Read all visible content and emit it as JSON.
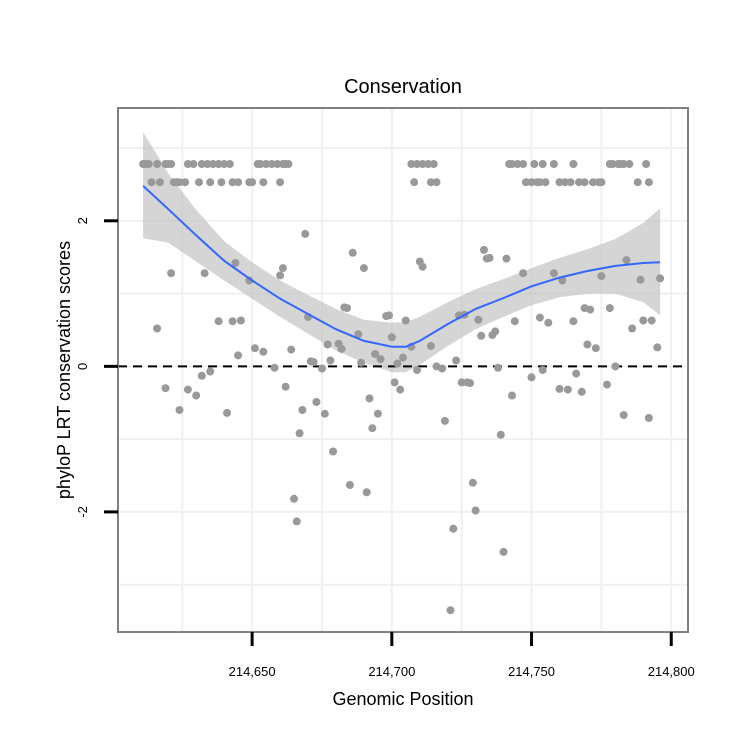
{
  "chart_data": {
    "type": "scatter",
    "title": "Conservation",
    "xlabel": "Genomic Position",
    "ylabel": "phyloP LRT conservation scores",
    "xlim": [
      214602,
      214806
    ],
    "ylim": [
      -3.65,
      3.55
    ],
    "x_ticks": [
      214650,
      214700,
      214750,
      214800
    ],
    "x_tick_labels": [
      "214,650",
      "214,700",
      "214,750",
      "214,800"
    ],
    "y_ticks": [
      -2,
      0,
      2
    ],
    "y_tick_labels": [
      "-2",
      "0",
      "2"
    ],
    "reference_line": {
      "y": 0,
      "style": "dashed"
    },
    "grid": true,
    "colors": {
      "points": "#999999",
      "smooth_line": "#3366ff",
      "confidence_band": "#bfbfbf",
      "grid": "#f0f0f0",
      "border": "#808080"
    },
    "points": [
      {
        "x": 214611,
        "y": 2.78
      },
      {
        "x": 214612,
        "y": 2.78
      },
      {
        "x": 214613,
        "y": 2.78
      },
      {
        "x": 214614,
        "y": 2.53
      },
      {
        "x": 214616,
        "y": 2.78
      },
      {
        "x": 214617,
        "y": 2.53
      },
      {
        "x": 214619,
        "y": 2.78
      },
      {
        "x": 214620,
        "y": 2.78
      },
      {
        "x": 214621,
        "y": 2.78
      },
      {
        "x": 214622,
        "y": 2.53
      },
      {
        "x": 214623,
        "y": 2.53
      },
      {
        "x": 214624,
        "y": 2.53
      },
      {
        "x": 214626,
        "y": 2.53
      },
      {
        "x": 214627,
        "y": 2.78
      },
      {
        "x": 214629,
        "y": 2.78
      },
      {
        "x": 214631,
        "y": 2.53
      },
      {
        "x": 214632,
        "y": 2.78
      },
      {
        "x": 214634,
        "y": 2.78
      },
      {
        "x": 214635,
        "y": 2.53
      },
      {
        "x": 214636,
        "y": 2.78
      },
      {
        "x": 214638,
        "y": 2.78
      },
      {
        "x": 214639,
        "y": 2.53
      },
      {
        "x": 214640,
        "y": 2.78
      },
      {
        "x": 214642,
        "y": 2.78
      },
      {
        "x": 214643,
        "y": 2.53
      },
      {
        "x": 214645,
        "y": 2.53
      },
      {
        "x": 214649,
        "y": 2.53
      },
      {
        "x": 214650,
        "y": 2.53
      },
      {
        "x": 214652,
        "y": 2.78
      },
      {
        "x": 214653,
        "y": 2.78
      },
      {
        "x": 214654,
        "y": 2.53
      },
      {
        "x": 214655,
        "y": 2.78
      },
      {
        "x": 214657,
        "y": 2.78
      },
      {
        "x": 214659,
        "y": 2.78
      },
      {
        "x": 214660,
        "y": 2.53
      },
      {
        "x": 214661,
        "y": 2.78
      },
      {
        "x": 214662,
        "y": 2.78
      },
      {
        "x": 214663,
        "y": 2.78
      },
      {
        "x": 214707,
        "y": 2.78
      },
      {
        "x": 214708,
        "y": 2.53
      },
      {
        "x": 214709,
        "y": 2.78
      },
      {
        "x": 214711,
        "y": 2.78
      },
      {
        "x": 214713,
        "y": 2.78
      },
      {
        "x": 214714,
        "y": 2.53
      },
      {
        "x": 214715,
        "y": 2.78
      },
      {
        "x": 214716,
        "y": 2.53
      },
      {
        "x": 214742,
        "y": 2.78
      },
      {
        "x": 214743,
        "y": 2.78
      },
      {
        "x": 214745,
        "y": 2.78
      },
      {
        "x": 214747,
        "y": 2.78
      },
      {
        "x": 214748,
        "y": 2.53
      },
      {
        "x": 214750,
        "y": 2.53
      },
      {
        "x": 214751,
        "y": 2.78
      },
      {
        "x": 214752,
        "y": 2.53
      },
      {
        "x": 214753,
        "y": 2.53
      },
      {
        "x": 214754,
        "y": 2.78
      },
      {
        "x": 214755,
        "y": 2.53
      },
      {
        "x": 214758,
        "y": 2.78
      },
      {
        "x": 214760,
        "y": 2.53
      },
      {
        "x": 214762,
        "y": 2.53
      },
      {
        "x": 214764,
        "y": 2.53
      },
      {
        "x": 214765,
        "y": 2.78
      },
      {
        "x": 214767,
        "y": 2.53
      },
      {
        "x": 214769,
        "y": 2.53
      },
      {
        "x": 214772,
        "y": 2.53
      },
      {
        "x": 214774,
        "y": 2.53
      },
      {
        "x": 214775,
        "y": 2.53
      },
      {
        "x": 214778,
        "y": 2.78
      },
      {
        "x": 214779,
        "y": 2.78
      },
      {
        "x": 214781,
        "y": 2.78
      },
      {
        "x": 214782,
        "y": 2.78
      },
      {
        "x": 214783,
        "y": 2.78
      },
      {
        "x": 214785,
        "y": 2.78
      },
      {
        "x": 214788,
        "y": 2.53
      },
      {
        "x": 214791,
        "y": 2.78
      },
      {
        "x": 214792,
        "y": 2.53
      },
      {
        "x": 214616,
        "y": 0.52
      },
      {
        "x": 214619,
        "y": -0.3
      },
      {
        "x": 214621,
        "y": 1.28
      },
      {
        "x": 214624,
        "y": -0.6
      },
      {
        "x": 214627,
        "y": -0.32
      },
      {
        "x": 214630,
        "y": -0.4
      },
      {
        "x": 214632,
        "y": -0.13
      },
      {
        "x": 214633,
        "y": 1.28
      },
      {
        "x": 214635,
        "y": -0.07
      },
      {
        "x": 214638,
        "y": 0.62
      },
      {
        "x": 214641,
        "y": -0.64
      },
      {
        "x": 214643,
        "y": 0.62
      },
      {
        "x": 214644,
        "y": 1.42
      },
      {
        "x": 214645,
        "y": 0.15
      },
      {
        "x": 214646,
        "y": 0.63
      },
      {
        "x": 214649,
        "y": 1.18
      },
      {
        "x": 214651,
        "y": 0.25
      },
      {
        "x": 214654,
        "y": 0.2
      },
      {
        "x": 214658,
        "y": -0.02
      },
      {
        "x": 214660,
        "y": 1.25
      },
      {
        "x": 214661,
        "y": 1.35
      },
      {
        "x": 214662,
        "y": -0.28
      },
      {
        "x": 214664,
        "y": 0.23
      },
      {
        "x": 214665,
        "y": -1.82
      },
      {
        "x": 214666,
        "y": -2.13
      },
      {
        "x": 214667,
        "y": -0.92
      },
      {
        "x": 214668,
        "y": -0.6
      },
      {
        "x": 214669,
        "y": 1.82
      },
      {
        "x": 214670,
        "y": 0.68
      },
      {
        "x": 214671,
        "y": 0.07
      },
      {
        "x": 214672,
        "y": 0.06
      },
      {
        "x": 214673,
        "y": -0.49
      },
      {
        "x": 214675,
        "y": -0.03
      },
      {
        "x": 214676,
        "y": -0.65
      },
      {
        "x": 214677,
        "y": 0.3
      },
      {
        "x": 214678,
        "y": 0.08
      },
      {
        "x": 214679,
        "y": -1.17
      },
      {
        "x": 214681,
        "y": 0.31
      },
      {
        "x": 214682,
        "y": 0.24
      },
      {
        "x": 214683,
        "y": 0.81
      },
      {
        "x": 214684,
        "y": 0.8
      },
      {
        "x": 214685,
        "y": -1.63
      },
      {
        "x": 214686,
        "y": 1.56
      },
      {
        "x": 214688,
        "y": 0.44
      },
      {
        "x": 214689,
        "y": 0.05
      },
      {
        "x": 214690,
        "y": 1.35
      },
      {
        "x": 214691,
        "y": -1.73
      },
      {
        "x": 214692,
        "y": -0.44
      },
      {
        "x": 214693,
        "y": -0.85
      },
      {
        "x": 214694,
        "y": 0.17
      },
      {
        "x": 214695,
        "y": -0.65
      },
      {
        "x": 214696,
        "y": 0.1
      },
      {
        "x": 214698,
        "y": 0.69
      },
      {
        "x": 214699,
        "y": 0.7
      },
      {
        "x": 214700,
        "y": 0.4
      },
      {
        "x": 214701,
        "y": -0.22
      },
      {
        "x": 214702,
        "y": 0.04
      },
      {
        "x": 214703,
        "y": -0.32
      },
      {
        "x": 214704,
        "y": 0.12
      },
      {
        "x": 214705,
        "y": 0.63
      },
      {
        "x": 214707,
        "y": 0.27
      },
      {
        "x": 214709,
        "y": -0.05
      },
      {
        "x": 214710,
        "y": 1.44
      },
      {
        "x": 214711,
        "y": 1.37
      },
      {
        "x": 214714,
        "y": 0.28
      },
      {
        "x": 214716,
        "y": 0.0
      },
      {
        "x": 214718,
        "y": -0.03
      },
      {
        "x": 214719,
        "y": -0.75
      },
      {
        "x": 214721,
        "y": -3.35
      },
      {
        "x": 214722,
        "y": -2.23
      },
      {
        "x": 214723,
        "y": 0.08
      },
      {
        "x": 214724,
        "y": 0.7
      },
      {
        "x": 214725,
        "y": -0.22
      },
      {
        "x": 214726,
        "y": 0.71
      },
      {
        "x": 214727,
        "y": -0.22
      },
      {
        "x": 214728,
        "y": -0.23
      },
      {
        "x": 214729,
        "y": -1.6
      },
      {
        "x": 214730,
        "y": -1.98
      },
      {
        "x": 214731,
        "y": 0.64
      },
      {
        "x": 214732,
        "y": 0.42
      },
      {
        "x": 214733,
        "y": 1.6
      },
      {
        "x": 214734,
        "y": 1.48
      },
      {
        "x": 214735,
        "y": 1.49
      },
      {
        "x": 214736,
        "y": 0.43
      },
      {
        "x": 214737,
        "y": 0.48
      },
      {
        "x": 214738,
        "y": -0.02
      },
      {
        "x": 214739,
        "y": -0.94
      },
      {
        "x": 214740,
        "y": -2.55
      },
      {
        "x": 214741,
        "y": 1.48
      },
      {
        "x": 214743,
        "y": -0.4
      },
      {
        "x": 214744,
        "y": 0.62
      },
      {
        "x": 214747,
        "y": 1.28
      },
      {
        "x": 214750,
        "y": -0.15
      },
      {
        "x": 214753,
        "y": 0.67
      },
      {
        "x": 214754,
        "y": -0.05
      },
      {
        "x": 214756,
        "y": 0.6
      },
      {
        "x": 214758,
        "y": 1.28
      },
      {
        "x": 214760,
        "y": -0.31
      },
      {
        "x": 214761,
        "y": 1.18
      },
      {
        "x": 214763,
        "y": -0.32
      },
      {
        "x": 214765,
        "y": 0.62
      },
      {
        "x": 214766,
        "y": -0.1
      },
      {
        "x": 214768,
        "y": -0.35
      },
      {
        "x": 214769,
        "y": 0.8
      },
      {
        "x": 214770,
        "y": 0.3
      },
      {
        "x": 214771,
        "y": 0.78
      },
      {
        "x": 214773,
        "y": 0.25
      },
      {
        "x": 214775,
        "y": 1.24
      },
      {
        "x": 214777,
        "y": -0.25
      },
      {
        "x": 214778,
        "y": 0.8
      },
      {
        "x": 214780,
        "y": 0.0
      },
      {
        "x": 214783,
        "y": -0.67
      },
      {
        "x": 214784,
        "y": 1.46
      },
      {
        "x": 214786,
        "y": 0.52
      },
      {
        "x": 214789,
        "y": 1.19
      },
      {
        "x": 214790,
        "y": 0.63
      },
      {
        "x": 214792,
        "y": -0.71
      },
      {
        "x": 214793,
        "y": 0.63
      },
      {
        "x": 214795,
        "y": 0.26
      },
      {
        "x": 214796,
        "y": 1.21
      }
    ],
    "smooth": {
      "method": "loess",
      "x": [
        214611,
        214620,
        214630,
        214640,
        214650,
        214660,
        214670,
        214680,
        214690,
        214700,
        214705,
        214710,
        214720,
        214730,
        214740,
        214750,
        214760,
        214770,
        214780,
        214790,
        214796
      ],
      "y": [
        2.48,
        2.16,
        1.8,
        1.45,
        1.18,
        0.93,
        0.72,
        0.51,
        0.35,
        0.27,
        0.27,
        0.35,
        0.58,
        0.79,
        0.94,
        1.1,
        1.22,
        1.31,
        1.38,
        1.42,
        1.43
      ],
      "upper": [
        3.22,
        2.65,
        2.15,
        1.72,
        1.43,
        1.18,
        0.98,
        0.79,
        0.64,
        0.6,
        0.61,
        0.68,
        0.88,
        1.06,
        1.2,
        1.35,
        1.49,
        1.61,
        1.75,
        1.97,
        2.17
      ],
      "lower": [
        1.76,
        1.7,
        1.44,
        1.18,
        0.93,
        0.68,
        0.45,
        0.22,
        0.05,
        -0.08,
        -0.08,
        0.02,
        0.28,
        0.51,
        0.68,
        0.84,
        0.95,
        1.0,
        1.0,
        0.88,
        0.7
      ]
    }
  }
}
